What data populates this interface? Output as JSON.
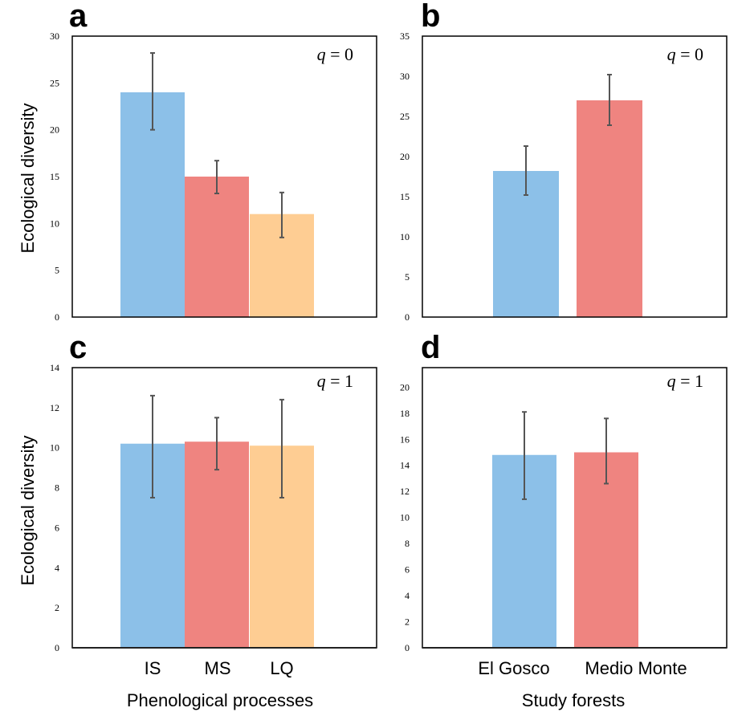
{
  "colors": {
    "IS": "#8CC0E8",
    "MS": "#EF8480",
    "LQ": "#FECD93",
    "error": "#555555",
    "frame": "#000000"
  },
  "ylabel_left": "Ecological diversity",
  "xlabel_left": "Phenological processes",
  "xlabel_right": "Study forests",
  "categories_left": [
    "IS",
    "MS",
    "LQ"
  ],
  "categories_right": [
    "El Gosco",
    "Medio Monte"
  ],
  "chart_data": [
    {
      "panel": "a",
      "type": "bar",
      "q_var": "q",
      "q_rest": " = 0",
      "categories": [
        "IS",
        "MS",
        "LQ"
      ],
      "values": [
        24,
        15,
        11
      ],
      "err_low": [
        20,
        13.2,
        8.5
      ],
      "err_high": [
        28.2,
        16.7,
        13.3
      ],
      "colors": [
        "#8CC0E8",
        "#EF8480",
        "#FECD93"
      ],
      "ylim": [
        0,
        30
      ],
      "yticks": [
        0,
        5,
        10,
        15,
        20,
        25,
        30
      ],
      "ylabel": "Ecological diversity",
      "xlabel": ""
    },
    {
      "panel": "b",
      "type": "bar",
      "q_var": "q",
      "q_rest": " = 0",
      "categories": [
        "El Gosco",
        "Medio Monte"
      ],
      "values": [
        18.2,
        27
      ],
      "err_low": [
        15.2,
        23.9
      ],
      "err_high": [
        21.3,
        30.2
      ],
      "colors": [
        "#8CC0E8",
        "#EF8480"
      ],
      "ylim": [
        0,
        35
      ],
      "yticks": [
        0,
        5,
        10,
        15,
        20,
        25,
        30,
        35
      ],
      "ylabel": "",
      "xlabel": ""
    },
    {
      "panel": "c",
      "type": "bar",
      "q_var": "q",
      "q_rest": " = 1",
      "categories": [
        "IS",
        "MS",
        "LQ"
      ],
      "values": [
        10.2,
        10.3,
        10.1
      ],
      "err_low": [
        7.5,
        8.9,
        7.5
      ],
      "err_high": [
        12.6,
        11.5,
        12.4
      ],
      "colors": [
        "#8CC0E8",
        "#EF8480",
        "#FECD93"
      ],
      "ylim": [
        0,
        14
      ],
      "yticks": [
        0,
        2,
        4,
        6,
        8,
        10,
        12,
        14
      ],
      "ylabel": "Ecological diversity",
      "xlabel": "Phenological processes"
    },
    {
      "panel": "d",
      "type": "bar",
      "q_var": "q",
      "q_rest": " = 1",
      "categories": [
        "El Gosco",
        "Medio Monte"
      ],
      "values": [
        14.8,
        15
      ],
      "err_low": [
        11.4,
        12.6
      ],
      "err_high": [
        18.1,
        17.6
      ],
      "colors": [
        "#8CC0E8",
        "#EF8480"
      ],
      "ylim": [
        0,
        21.5
      ],
      "yticks": [
        0,
        2,
        4,
        6,
        8,
        10,
        12,
        14,
        16,
        18,
        20
      ],
      "ylabel": "",
      "xlabel": "Study forests"
    }
  ]
}
